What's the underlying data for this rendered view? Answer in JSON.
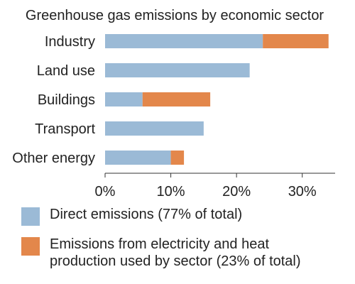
{
  "chart_data": {
    "type": "bar",
    "orientation": "horizontal",
    "stacked": true,
    "title": "Greenhouse gas emissions by economic sector",
    "xlabel": "",
    "ylabel": "",
    "categories": [
      "Industry",
      "Land use",
      "Buildings",
      "Transport",
      "Other energy"
    ],
    "series": [
      {
        "name": "Direct emissions (77% of total)",
        "color": "#9bbad6",
        "values": [
          24,
          22,
          5.7,
          15,
          10
        ]
      },
      {
        "name": "Emissions from electricity and heat production used by sector (23% of total)",
        "color": "#e3874b",
        "values": [
          10,
          0,
          10.3,
          0,
          2
        ]
      }
    ],
    "xlim": [
      0,
      35
    ],
    "xticks": [
      {
        "value": 0,
        "label": "0%"
      },
      {
        "value": 10,
        "label": "10%"
      },
      {
        "value": 20,
        "label": "20%"
      },
      {
        "value": 30,
        "label": "30%"
      }
    ],
    "grid": false,
    "legend_position": "bottom"
  }
}
